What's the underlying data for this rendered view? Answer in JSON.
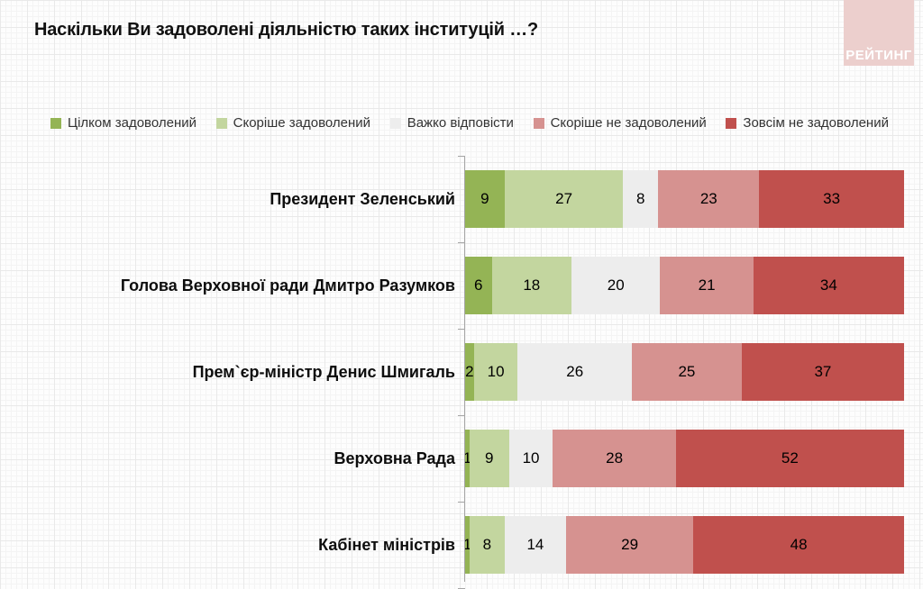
{
  "title": "Наскільки Ви задоволені діяльністю таких інституцій …?",
  "logo": {
    "text": "РЕЙТИНГ",
    "background": "#eccfcd",
    "text_color": "#ffffff"
  },
  "colors": {
    "fully_satisfied": "#94b455",
    "rather_satisfied": "#c3d69f",
    "hard_to_answer": "#ededed",
    "rather_not_satisfied": "#d69290",
    "not_satisfied": "#c0504d",
    "axis": "#a6a6a6"
  },
  "chart_data": {
    "type": "bar",
    "stacked": true,
    "orientation": "horizontal",
    "title": "Наскільки Ви задоволені діяльністю таких інституцій …?",
    "categories": [
      "Президент Зеленський",
      "Голова Верховної ради Дмитро Разумков",
      "Прем`єр-міністр Денис Шмигаль",
      "Верховна Рада",
      "Кабінет міністрів"
    ],
    "series": [
      {
        "name": "Цілком задоволений",
        "color": "#94b455",
        "values": [
          9,
          6,
          2,
          1,
          1
        ]
      },
      {
        "name": "Скоріше задоволений",
        "color": "#c3d69f",
        "values": [
          27,
          18,
          10,
          9,
          8
        ]
      },
      {
        "name": "Важко відповісти",
        "color": "#ededed",
        "values": [
          8,
          20,
          26,
          10,
          14
        ]
      },
      {
        "name": "Скоріше не задоволений",
        "color": "#d69290",
        "values": [
          23,
          21,
          25,
          28,
          29
        ]
      },
      {
        "name": "Зовсім не задоволений",
        "color": "#c0504d",
        "values": [
          33,
          34,
          37,
          52,
          48
        ]
      }
    ],
    "xlim": [
      0,
      100
    ],
    "value_labels": true,
    "legend_position": "top",
    "grid": "graph-paper-background"
  }
}
